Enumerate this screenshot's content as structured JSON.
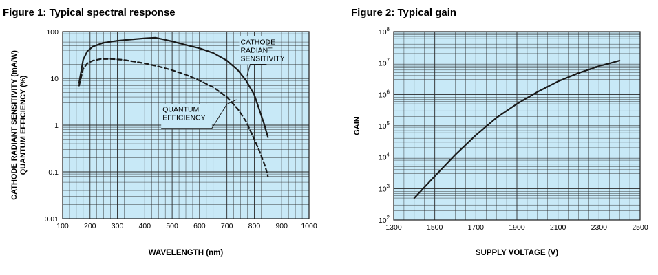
{
  "colors": {
    "plot_bg": "#c8e9f7",
    "grid": "#2a2a2a",
    "ink": "#1a1a1a"
  },
  "chart_data": [
    {
      "type": "line",
      "title": "Figure 1: Typical spectral response",
      "xlabel": "WAVELENGTH (nm)",
      "ylabel_line1": "CATHODE RADIANT SENSITIVITY (mA/W)",
      "ylabel_line2": "QUANTUM EFFICIENCY (%)",
      "xscale": "linear",
      "yscale": "log",
      "xlim": [
        100,
        1000
      ],
      "ylim": [
        0.01,
        100
      ],
      "xticks": [
        "100",
        "200",
        "300",
        "400",
        "500",
        "600",
        "700",
        "800",
        "900",
        "1000"
      ],
      "yticks": [
        "0.01",
        "0.1",
        "1",
        "10",
        "100"
      ],
      "series": [
        {
          "name": "CATHODE RADIANT SENSITIVITY",
          "style": "solid",
          "x": [
            160,
            175,
            190,
            210,
            250,
            300,
            350,
            400,
            440,
            470,
            500,
            550,
            600,
            650,
            700,
            740,
            770,
            800,
            820,
            835,
            850
          ],
          "y": [
            8,
            25,
            38,
            48,
            58,
            64,
            68,
            72,
            74,
            68,
            62,
            52,
            44,
            35,
            24,
            15,
            9,
            4.5,
            2,
            1.1,
            0.55
          ]
        },
        {
          "name": "QUANTUM EFFICIENCY",
          "style": "dashed",
          "x": [
            160,
            175,
            190,
            210,
            240,
            280,
            320,
            360,
            400,
            450,
            500,
            550,
            600,
            650,
            700,
            740,
            770,
            800,
            820,
            840,
            850
          ],
          "y": [
            7,
            16,
            21,
            24,
            26,
            26,
            25,
            23,
            21,
            18,
            15,
            12,
            9,
            6.5,
            4,
            2.2,
            1.2,
            0.5,
            0.27,
            0.13,
            0.08
          ]
        }
      ],
      "annotations": {
        "cathode": [
          "CATHODE",
          "RADIANT",
          "SENSITIVITY"
        ],
        "quantum": [
          "QUANTUM",
          "EFFICIENCY"
        ]
      }
    },
    {
      "type": "line",
      "title": "Figure 2: Typical gain",
      "xlabel": "SUPPLY VOLTAGE (V)",
      "ylabel": "GAIN",
      "xscale": "linear",
      "yscale": "log",
      "xlim": [
        1300,
        2500
      ],
      "ylim": [
        100,
        100000000
      ],
      "xticks": [
        "1300",
        "1500",
        "1700",
        "1900",
        "2100",
        "2300",
        "2500"
      ],
      "yticks": [
        {
          "base": "10",
          "exp": "2"
        },
        {
          "base": "10",
          "exp": "3"
        },
        {
          "base": "10",
          "exp": "4"
        },
        {
          "base": "10",
          "exp": "5"
        },
        {
          "base": "10",
          "exp": "6"
        },
        {
          "base": "10",
          "exp": "7"
        },
        {
          "base": "10",
          "exp": "8"
        }
      ],
      "series": [
        {
          "name": "GAIN",
          "style": "solid",
          "x": [
            1400,
            1500,
            1600,
            1700,
            1800,
            1900,
            2000,
            2100,
            2200,
            2300,
            2400
          ],
          "y": [
            500,
            2500,
            12000,
            50000,
            180000,
            500000,
            1200000,
            2600000,
            4800000,
            8000000,
            12000000
          ]
        }
      ]
    }
  ]
}
